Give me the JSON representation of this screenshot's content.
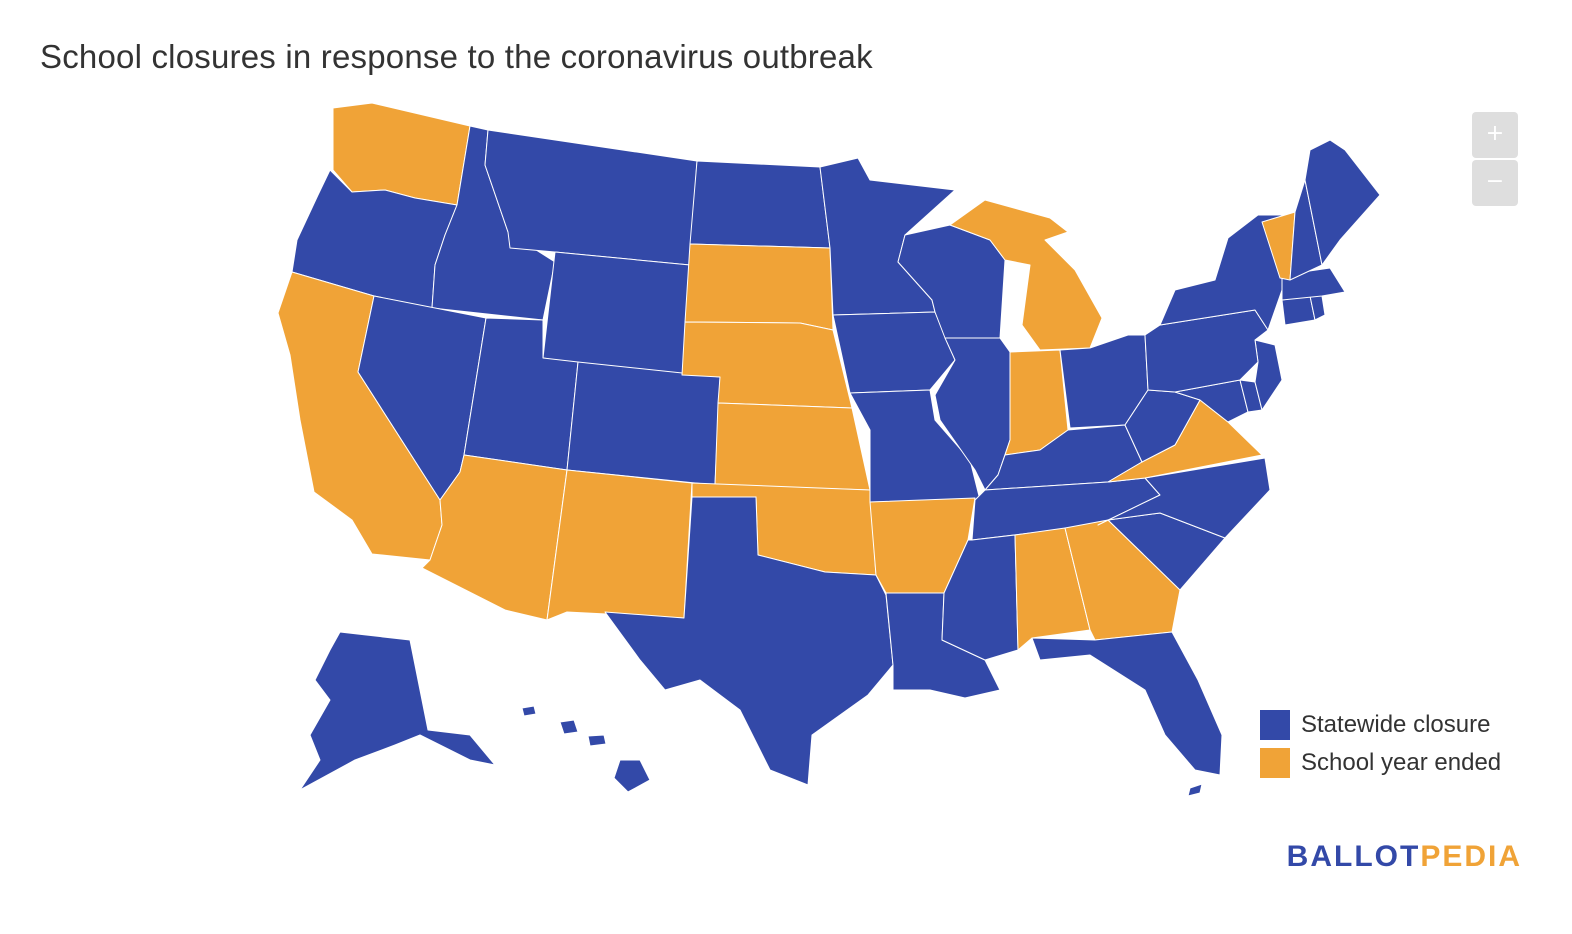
{
  "title": "School closures in response to the coronavirus outbreak",
  "zoom": {
    "in_label": "+",
    "out_label": "−"
  },
  "legend": [
    {
      "label": "Statewide closure",
      "color": "#3349a8"
    },
    {
      "label": "School year ended",
      "color": "#f0a337"
    }
  ],
  "brand": {
    "part1": "BALLOT",
    "part2": "PEDIA",
    "color1": "#3349a8",
    "color2": "#f0a337"
  },
  "map_data": {
    "type": "choropleth",
    "categories": [
      "Statewide closure",
      "School year ended"
    ],
    "states": {
      "Washington": "School year ended",
      "Oregon": "Statewide closure",
      "California": "School year ended",
      "Idaho": "Statewide closure",
      "Nevada": "Statewide closure",
      "Montana": "Statewide closure",
      "Wyoming": "Statewide closure",
      "Utah": "Statewide closure",
      "Arizona": "School year ended",
      "Colorado": "Statewide closure",
      "New Mexico": "School year ended",
      "North Dakota": "Statewide closure",
      "South Dakota": "School year ended",
      "Nebraska": "School year ended",
      "Kansas": "School year ended",
      "Oklahoma": "School year ended",
      "Texas": "Statewide closure",
      "Minnesota": "Statewide closure",
      "Iowa": "Statewide closure",
      "Missouri": "Statewide closure",
      "Arkansas": "School year ended",
      "Louisiana": "Statewide closure",
      "Wisconsin": "Statewide closure",
      "Illinois": "Statewide closure",
      "Michigan": "School year ended",
      "Indiana": "School year ended",
      "Ohio": "Statewide closure",
      "Kentucky": "Statewide closure",
      "Tennessee": "Statewide closure",
      "Mississippi": "Statewide closure",
      "Alabama": "School year ended",
      "Georgia": "School year ended",
      "Florida": "Statewide closure",
      "South Carolina": "Statewide closure",
      "North Carolina": "Statewide closure",
      "Virginia": "School year ended",
      "West Virginia": "Statewide closure",
      "Maryland": "Statewide closure",
      "Delaware": "Statewide closure",
      "New Jersey": "Statewide closure",
      "Pennsylvania": "Statewide closure",
      "New York": "Statewide closure",
      "Connecticut": "Statewide closure",
      "Rhode Island": "Statewide closure",
      "Massachusetts": "Statewide closure",
      "Vermont": "School year ended",
      "New Hampshire": "Statewide closure",
      "Maine": "Statewide closure",
      "Alaska": "Statewide closure",
      "Hawaii": "Statewide closure"
    }
  }
}
